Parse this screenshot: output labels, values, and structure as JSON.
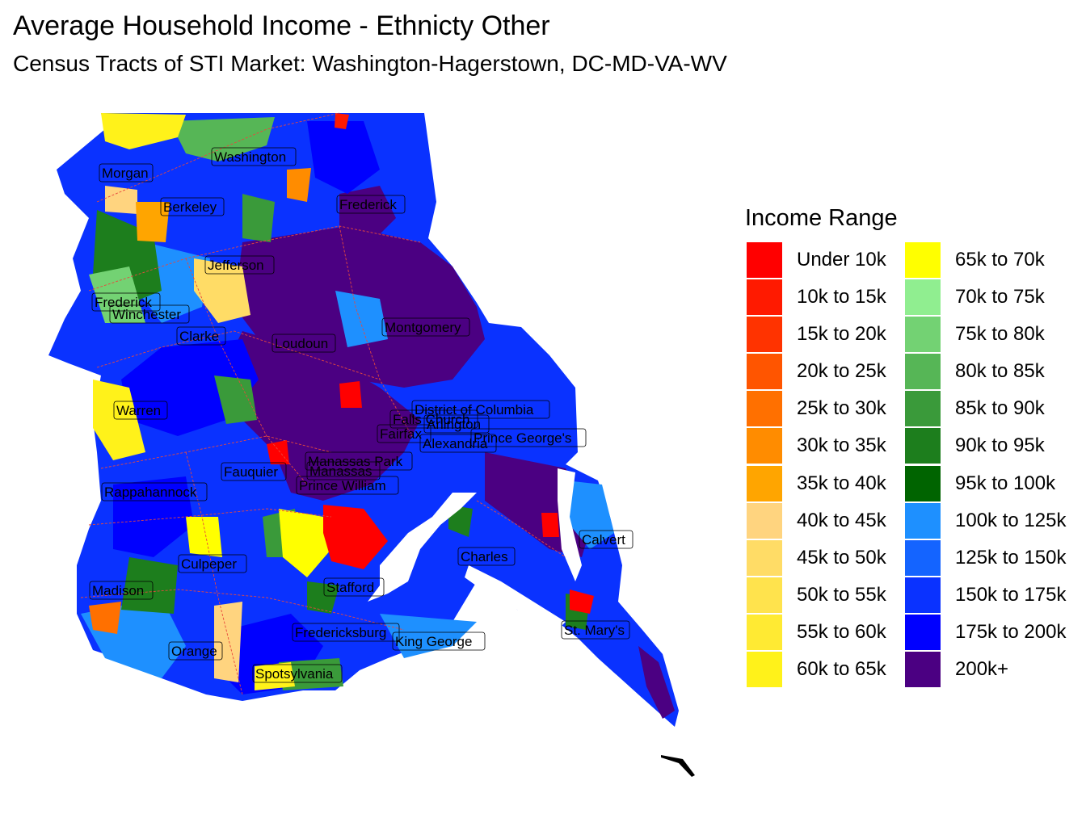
{
  "title": "Average Household Income - Ethnicty Other",
  "subtitle": "Census Tracts of STI Market: Washington-Hagerstown, DC-MD-VA-WV",
  "legend": {
    "title": "Income Range",
    "items": [
      {
        "label": "Under 10k",
        "color": "#FF0000"
      },
      {
        "label": "10k to 15k",
        "color": "#FF1A00"
      },
      {
        "label": "15k to 20k",
        "color": "#FF3300"
      },
      {
        "label": "20k to 25k",
        "color": "#FF5500"
      },
      {
        "label": "25k to 30k",
        "color": "#FF7000"
      },
      {
        "label": "30k to 35k",
        "color": "#FF8C00"
      },
      {
        "label": "35k to 40k",
        "color": "#FFA500"
      },
      {
        "label": "40k to 45k",
        "color": "#FFD47F"
      },
      {
        "label": "45k to 50k",
        "color": "#FFDC66"
      },
      {
        "label": "50k to 55k",
        "color": "#FFE34D"
      },
      {
        "label": "55k to 60k",
        "color": "#FFEA33"
      },
      {
        "label": "60k to 65k",
        "color": "#FFF21A"
      },
      {
        "label": "65k to 70k",
        "color": "#FFFF00"
      },
      {
        "label": "70k to 75k",
        "color": "#90EE90"
      },
      {
        "label": "75k to 80k",
        "color": "#73D273"
      },
      {
        "label": "80k to 85k",
        "color": "#56B656"
      },
      {
        "label": "85k to 90k",
        "color": "#3A9A3A"
      },
      {
        "label": "90k to 95k",
        "color": "#1D7E1D"
      },
      {
        "label": "95k to 100k",
        "color": "#006400"
      },
      {
        "label": "100k to 125k",
        "color": "#1E90FF"
      },
      {
        "label": "125k to 150k",
        "color": "#1464FF"
      },
      {
        "label": "150k to 175k",
        "color": "#0A32FF"
      },
      {
        "label": "175k to 200k",
        "color": "#0000FF"
      },
      {
        "label": "200k+",
        "color": "#4B0082"
      }
    ]
  },
  "map": {
    "labels": [
      "Washington",
      "Morgan",
      "Berkeley",
      "Frederick",
      "Jefferson",
      "Frederick",
      "Winchester",
      "Clarke",
      "Loudoun",
      "Montgomery",
      "Warren",
      "District of Columbia",
      "Falls Church",
      "Arlington",
      "Fairfax",
      "Alexandria",
      "Prince George's",
      "Manassas Park",
      "Manassas",
      "Fauquier",
      "Prince William",
      "Rappahannock",
      "Calvert",
      "Charles",
      "Culpeper",
      "Stafford",
      "Madison",
      "St. Mary's",
      "Fredericksburg",
      "King George",
      "Orange",
      "Spotsylvania"
    ]
  }
}
